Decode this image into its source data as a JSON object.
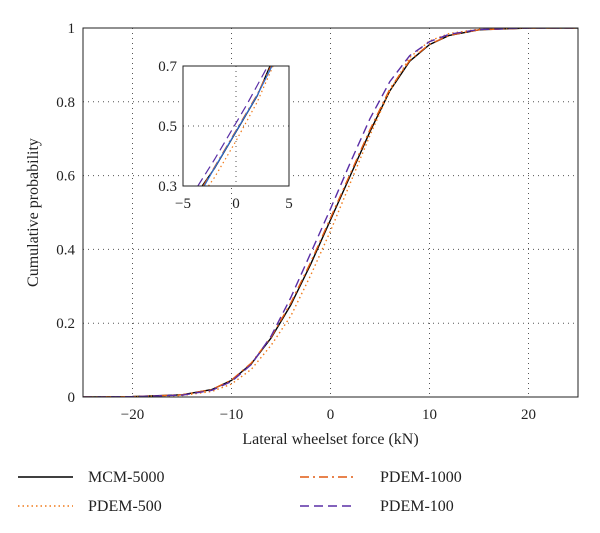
{
  "chart_data": [
    {
      "type": "line",
      "xlabel": "Lateral wheelset force (kN)",
      "ylabel": "Cumulative probability",
      "xlim": [
        -25,
        25
      ],
      "ylim": [
        0,
        1
      ],
      "x_ticks": [
        "−20",
        "−10",
        "0",
        "10",
        "20"
      ],
      "x_tick_values": [
        -20,
        -10,
        0,
        10,
        20
      ],
      "y_ticks": [
        "0",
        "0.2",
        "0.4",
        "0.6",
        "0.8",
        "1"
      ],
      "y_tick_values": [
        0,
        0.2,
        0.4,
        0.6,
        0.8,
        1
      ],
      "grid": true,
      "legend_position": "below",
      "series": [
        {
          "name": "MCM-5000",
          "color": "#000000",
          "style": "solid",
          "x": [
            -25,
            -20,
            -15,
            -12,
            -10,
            -8,
            -6,
            -4,
            -2,
            0,
            2,
            4,
            6,
            8,
            10,
            12,
            15,
            20,
            25
          ],
          "y": [
            0,
            0.001,
            0.006,
            0.02,
            0.045,
            0.09,
            0.16,
            0.25,
            0.36,
            0.48,
            0.6,
            0.72,
            0.83,
            0.91,
            0.955,
            0.98,
            0.995,
            1.0,
            1.0
          ]
        },
        {
          "name": "PDEM-1000",
          "color": "#e05a12",
          "style": "dashdot",
          "x": [
            -25,
            -20,
            -15,
            -12,
            -10,
            -8,
            -6,
            -4,
            -2,
            0,
            2,
            4,
            6,
            8,
            10,
            12,
            15,
            20,
            25
          ],
          "y": [
            0,
            0.001,
            0.006,
            0.02,
            0.046,
            0.092,
            0.162,
            0.255,
            0.365,
            0.485,
            0.605,
            0.725,
            0.835,
            0.912,
            0.956,
            0.98,
            0.995,
            1.0,
            1.0
          ]
        },
        {
          "name": "PDEM-500",
          "color": "#f07a1a",
          "style": "dotted",
          "x": [
            -25,
            -20,
            -15,
            -12,
            -10,
            -8,
            -6,
            -4,
            -2,
            0,
            2,
            4,
            6,
            8,
            10,
            12,
            15,
            20,
            25
          ],
          "y": [
            0,
            0.001,
            0.004,
            0.015,
            0.035,
            0.075,
            0.14,
            0.22,
            0.33,
            0.45,
            0.58,
            0.71,
            0.83,
            0.92,
            0.965,
            0.985,
            0.997,
            1.0,
            1.0
          ]
        },
        {
          "name": "PDEM-100",
          "color": "#5a2ea6",
          "style": "dashed",
          "x": [
            -25,
            -20,
            -15,
            -12,
            -10,
            -8,
            -6,
            -4,
            -2,
            0,
            2,
            4,
            6,
            8,
            10,
            12,
            15,
            20,
            25
          ],
          "y": [
            0,
            0.001,
            0.005,
            0.018,
            0.042,
            0.088,
            0.165,
            0.27,
            0.39,
            0.51,
            0.635,
            0.755,
            0.855,
            0.925,
            0.963,
            0.983,
            0.996,
            1.0,
            1.0
          ]
        }
      ]
    },
    {
      "type": "line",
      "role": "inset",
      "xlim": [
        -5,
        5
      ],
      "ylim": [
        0.3,
        0.7
      ],
      "x_ticks": [
        "−5",
        "0",
        "5"
      ],
      "x_tick_values": [
        -5,
        0,
        5
      ],
      "y_ticks": [
        "0.3",
        "0.5",
        "0.7"
      ],
      "y_tick_values": [
        0.3,
        0.5,
        0.7
      ],
      "grid": true,
      "series": [
        {
          "name": "MCM-5000",
          "color": "#000000",
          "style": "solid",
          "x": [
            -3.2,
            -2,
            -1,
            0,
            1,
            2,
            3.2
          ],
          "y": [
            0.3,
            0.36,
            0.42,
            0.48,
            0.54,
            0.6,
            0.7
          ]
        },
        {
          "name": "PDEM-1000",
          "color": "#e05a12",
          "style": "dashdot",
          "x": [
            -3.1,
            -2,
            -1,
            0,
            1,
            2,
            3.3
          ],
          "y": [
            0.3,
            0.365,
            0.425,
            0.485,
            0.545,
            0.605,
            0.7
          ]
        },
        {
          "name": "PDEM-500",
          "color": "#f07a1a",
          "style": "dotted",
          "x": [
            -2.6,
            -2,
            -1,
            0,
            1,
            2,
            3.5
          ],
          "y": [
            0.3,
            0.33,
            0.39,
            0.45,
            0.515,
            0.58,
            0.7
          ]
        },
        {
          "name": "PDEM-100",
          "color": "#5a2ea6",
          "style": "dashed",
          "x": [
            -3.6,
            -2,
            -1,
            0,
            1,
            2,
            3.0
          ],
          "y": [
            0.3,
            0.39,
            0.45,
            0.51,
            0.57,
            0.635,
            0.7
          ]
        },
        {
          "name": "",
          "color": "#2f6fd1",
          "style": "solid",
          "x": [
            -3.0,
            -2,
            -1,
            0,
            1,
            2,
            3.4
          ],
          "y": [
            0.3,
            0.362,
            0.422,
            0.482,
            0.542,
            0.602,
            0.7
          ]
        }
      ]
    }
  ]
}
